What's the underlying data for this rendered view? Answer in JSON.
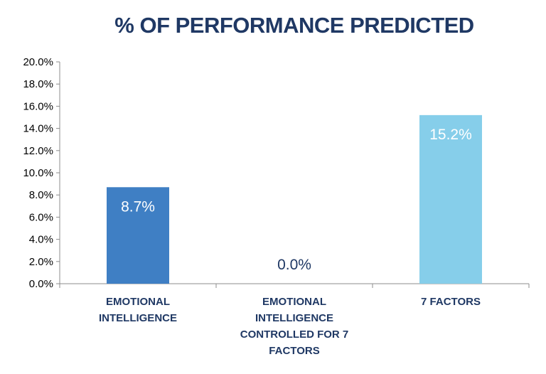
{
  "chart_data": {
    "type": "bar",
    "title": "% OF PERFORMANCE PREDICTED",
    "categories": [
      [
        "EMOTIONAL",
        "INTELLIGENCE"
      ],
      [
        "EMOTIONAL",
        "INTELLIGENCE",
        "CONTROLLED FOR 7",
        "FACTORS"
      ],
      [
        "7 FACTORS"
      ]
    ],
    "values": [
      8.7,
      0.0,
      15.2
    ],
    "data_labels": [
      "8.7%",
      "0.0%",
      "15.2%"
    ],
    "bar_colors": [
      "#3f7fc4",
      "#3f7fc4",
      "#86ceea"
    ],
    "label_colors": [
      "#ffffff",
      "#1f3864",
      "#ffffff"
    ],
    "ylim": [
      0,
      20
    ],
    "yticks": [
      "0.0%",
      "2.0%",
      "4.0%",
      "6.0%",
      "8.0%",
      "10.0%",
      "12.0%",
      "14.0%",
      "16.0%",
      "18.0%",
      "20.0%"
    ],
    "grid": false,
    "legend": "none",
    "xlabel": "",
    "ylabel": ""
  },
  "colors": {
    "title": "#1f3864",
    "axis": "#8c8c8c"
  }
}
